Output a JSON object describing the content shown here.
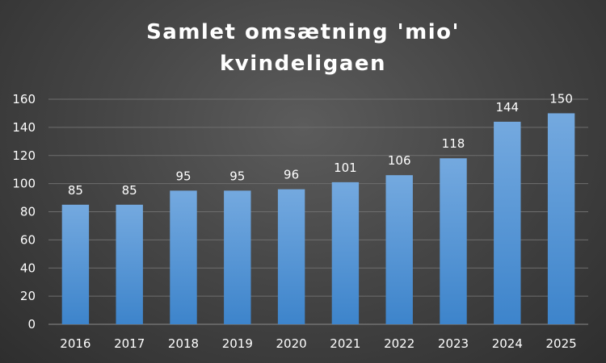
{
  "chart_data": {
    "type": "bar",
    "title_lines": [
      "Samlet omsætning 'mio'",
      "kvindeligaen"
    ],
    "categories": [
      "2016",
      "2017",
      "2018",
      "2019",
      "2020",
      "2021",
      "2022",
      "2023",
      "2024",
      "2025"
    ],
    "values": [
      85,
      85,
      95,
      95,
      96,
      101,
      106,
      118,
      144,
      150
    ],
    "ylim": [
      0,
      160
    ],
    "yticks": [
      0,
      20,
      40,
      60,
      80,
      100,
      120,
      140,
      160
    ],
    "grid": true,
    "legend": "none",
    "bar_color_top": "#74a9df",
    "bar_color_bottom": "#3d84cb"
  }
}
